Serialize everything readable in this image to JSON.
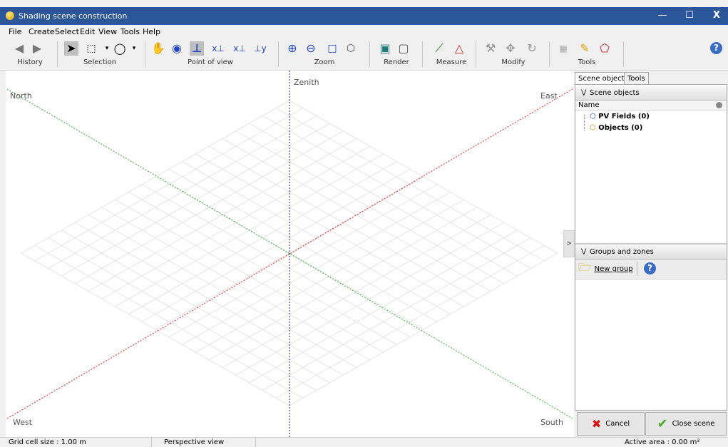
{
  "window": {
    "title": "Shading scene construction",
    "minimize": "—",
    "maximize": "☐",
    "close": "X"
  },
  "menu": [
    "File",
    "Create",
    "Select",
    "Edit",
    "View",
    "Tools",
    "Help"
  ],
  "toolbar": {
    "groups": {
      "history": "History",
      "selection": "Selection",
      "point_of_view": "Point of view",
      "zoom": "Zoom",
      "render": "Render",
      "measure": "Measure",
      "modify": "Modify",
      "tools": "Tools"
    },
    "help_icon": "?"
  },
  "viewport": {
    "labels": {
      "north": "North",
      "zenith": "Zenith",
      "east": "East",
      "west": "West",
      "south": "South"
    },
    "collapse": ">",
    "axis_colors": {
      "north_south": "#33aa33",
      "east_west": "#dd2222",
      "zenith": "#1a1acc"
    }
  },
  "tabs": [
    "Scene objects",
    "Tools"
  ],
  "scene_objects": {
    "header": "Scene objects",
    "column_name": "Name",
    "items": [
      {
        "label": "PV Fields (0)",
        "icon": "pv-fields-icon"
      },
      {
        "label": "Objects (0)",
        "icon": "objects-icon"
      }
    ]
  },
  "groups_zones": {
    "header": "Groups and zones",
    "new_group": "New group",
    "help": "?"
  },
  "buttons": {
    "cancel": "Cancel",
    "close_scene": "Close scene"
  },
  "status": {
    "grid": "Grid cell size :  1.00 m",
    "view": "Perspective view",
    "area": "Active area : 0.00 m²"
  }
}
